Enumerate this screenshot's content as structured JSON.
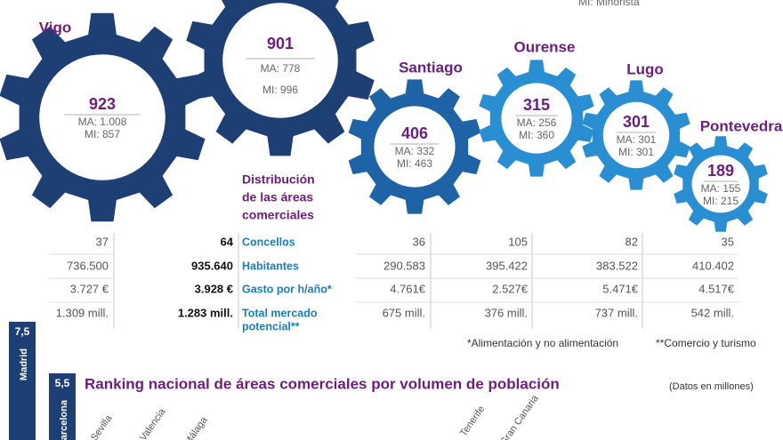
{
  "header": {
    "legend_cut": "MI: Minorista"
  },
  "gears": [
    {
      "name": "Vigo",
      "total": "923",
      "ma": "MA: 1.008",
      "mi": "MI: 857"
    },
    {
      "total": "901",
      "ma": "MA: 778",
      "mi": "MI: 996"
    },
    {
      "name": "Santiago",
      "total": "406",
      "ma": "MA: 332",
      "mi": "MI: 463"
    },
    {
      "name": "Ourense",
      "total": "315",
      "ma": "MA: 256",
      "mi": "MI: 360"
    },
    {
      "name": "Lugo",
      "total": "301",
      "ma": "MA: 301",
      "mi": "MI: 301"
    },
    {
      "name": "Pontevedra",
      "total": "189",
      "ma": "MA: 155",
      "mi": "MI: 215"
    }
  ],
  "table": {
    "heading": [
      "Distribución",
      "de las áreas",
      "comerciales"
    ],
    "row_labels": [
      [
        "Concellos"
      ],
      [
        "Habitantes"
      ],
      [
        "Gasto por h/año*"
      ],
      [
        "Total mercado",
        "potencial**"
      ]
    ],
    "rows": [
      [
        "37",
        "64",
        "36",
        "105",
        "82",
        "35"
      ],
      [
        "736.500",
        "935.640",
        "290.583",
        "395.422",
        "383.522",
        "410.402"
      ],
      [
        "3.727 €",
        "3.928 €",
        "4.761€",
        "2.527€",
        "5.471€",
        "4.517€"
      ],
      [
        "1.309 mill.",
        "1.283 mill.",
        "675 mill.",
        "376 mill.",
        "737 mill.",
        "542 mill."
      ]
    ]
  },
  "footnotes": [
    "*Alimentación y no alimentación",
    "**Comercio y turismo"
  ],
  "ranking": {
    "title": "Ranking nacional de áreas comerciales por volumen de población",
    "unit": "(Datos en millones)",
    "bars": [
      {
        "name": "Madrid",
        "value": "7,5"
      },
      {
        "name": "Barcelona",
        "value": "5,5"
      }
    ],
    "labels": [
      "Sevilla",
      "Valencia",
      "Málaga",
      "Tenerife",
      "Gran Canaria"
    ]
  }
}
